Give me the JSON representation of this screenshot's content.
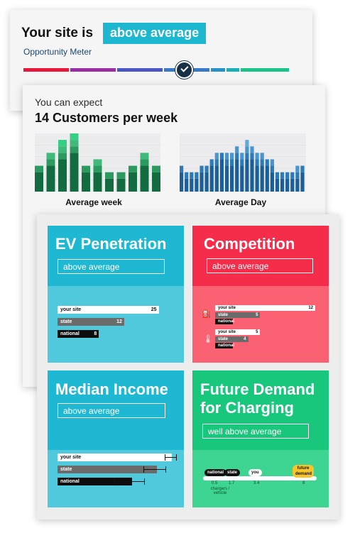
{
  "meter": {
    "lead": "Your site is",
    "badge": "above average",
    "label": "Opportunity Meter",
    "segments": [
      "#e8173a",
      "#9a2fa5",
      "#4a56c4",
      "#3a78c8",
      "#2790c9",
      "#19b0b9",
      "#19c38a"
    ]
  },
  "expect": {
    "intro": "You can expect",
    "headline": "14 Customers per week",
    "week_caption": "Average week",
    "day_caption": "Average Day"
  },
  "chart_data": [
    {
      "type": "bar",
      "title": "",
      "xlabel": "Average week",
      "ylabel": "",
      "series": [
        {
          "values": [
            3,
            4,
            5,
            6,
            3,
            3,
            2,
            2,
            3,
            4,
            3
          ]
        },
        {
          "values": [
            1,
            1,
            1,
            1,
            1,
            1,
            1,
            1,
            1,
            1,
            1
          ]
        },
        {
          "values": [
            0,
            1,
            1,
            1,
            0,
            1,
            0,
            0,
            0,
            1,
            0
          ]
        },
        {
          "values": [
            0,
            0,
            1,
            1,
            0,
            0,
            0,
            0,
            0,
            0,
            0
          ]
        }
      ],
      "colors": [
        "#136b40",
        "#2a9a5e",
        "#3fba7a",
        "#35cf86"
      ]
    },
    {
      "type": "bar",
      "title": "",
      "xlabel": "Average Day",
      "ylabel": "",
      "series": [
        {
          "values": [
            3,
            2,
            2,
            2,
            3,
            3,
            4,
            4,
            5,
            4,
            4,
            5,
            4,
            5,
            5,
            4,
            4,
            4,
            3,
            2,
            2,
            2,
            2,
            2,
            3
          ]
        },
        {
          "values": [
            1,
            1,
            1,
            1,
            1,
            1,
            1,
            1,
            1,
            1,
            1,
            1,
            1,
            1,
            1,
            1,
            1,
            1,
            1,
            1,
            1,
            1,
            1,
            1,
            1
          ]
        },
        {
          "values": [
            0,
            0,
            0,
            0,
            0,
            0,
            0,
            1,
            0,
            1,
            1,
            1,
            1,
            1,
            1,
            1,
            1,
            0,
            1,
            0,
            0,
            0,
            0,
            1,
            0
          ]
        },
        {
          "values": [
            0,
            0,
            0,
            0,
            0,
            0,
            0,
            0,
            0,
            0,
            0,
            0,
            0,
            1,
            0,
            0,
            0,
            0,
            0,
            0,
            0,
            0,
            0,
            0,
            0
          ]
        }
      ],
      "colors": [
        "#1c5f96",
        "#2c7ab8",
        "#4896cf",
        "#5eaade"
      ]
    }
  ],
  "ev": {
    "title": "EV Penetration",
    "value": "above average",
    "bars": [
      {
        "label": "your site",
        "value": "25",
        "frac": 0.88
      },
      {
        "label": "state",
        "value": "12",
        "frac": 0.58
      },
      {
        "label": "national",
        "value": "8",
        "frac": 0.36
      }
    ],
    "colors": {
      "top": "#1eb8d2",
      "bottom": "#50c9dc"
    }
  },
  "competition": {
    "title": "Competition",
    "value": "above average",
    "groups": [
      {
        "icon": "charger-icon",
        "bars": [
          {
            "label": "your site",
            "value": "12",
            "frac": 1.0
          },
          {
            "label": "state",
            "value": "5",
            "frac": 0.45
          },
          {
            "label": "national",
            "value": "",
            "frac": 0.18
          }
        ]
      },
      {
        "icon": "thermometer-icon",
        "bars": [
          {
            "label": "your site",
            "value": "5",
            "frac": 0.45
          },
          {
            "label": "state",
            "value": "4",
            "frac": 0.33
          },
          {
            "label": "national",
            "value": "",
            "frac": 0.18
          }
        ]
      }
    ],
    "colors": {
      "top": "#f52d4b",
      "bottom": "#fa6173"
    }
  },
  "income": {
    "title": "Median Income",
    "value": "above average",
    "bars": [
      {
        "label": "your site",
        "frac": 0.92,
        "err": 0.1
      },
      {
        "label": "state",
        "frac": 0.8,
        "err": 0.18
      },
      {
        "label": "national",
        "frac": 0.6,
        "err": 0.25
      }
    ],
    "colors": {
      "top": "#1eb8d2",
      "bottom": "#50c9dc"
    }
  },
  "demand": {
    "title_line1": "Future Demand",
    "title_line2": "for Charging",
    "value": "well above average",
    "markers": [
      {
        "label": "national",
        "style": "dark"
      },
      {
        "label": "state",
        "style": "dark"
      },
      {
        "label": "you",
        "style": "light"
      },
      {
        "label": "future demand",
        "style": "yellow"
      }
    ],
    "ticks": [
      "0.5",
      "1.7",
      "3.4",
      "8"
    ],
    "axis_label": "chargers / vehicle",
    "colors": {
      "top": "#18c77b",
      "bottom": "#3ed592"
    }
  }
}
